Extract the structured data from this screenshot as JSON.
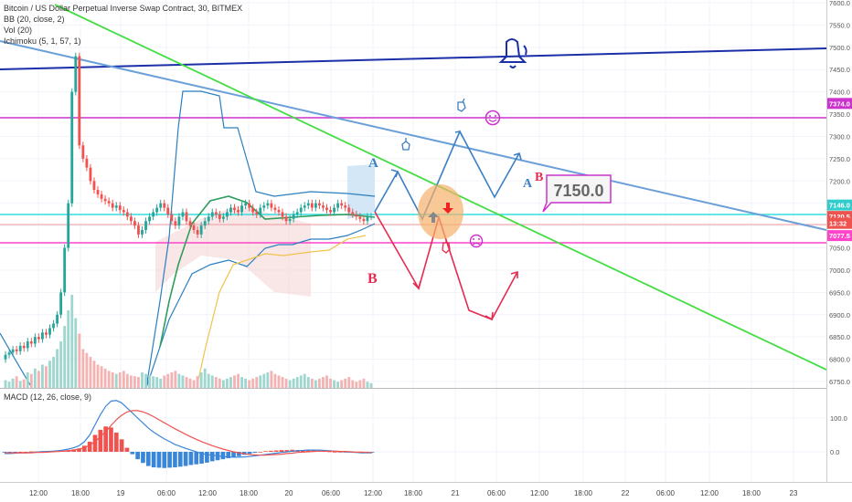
{
  "header": {
    "title": "Bitcoin / US Dollar Perpetual Inverse Swap Contract, 30, BITMEX",
    "indicators": [
      "BB (20, close, 2)",
      "Vol (20)",
      "Ichimoku (5, 1, 57, 1)"
    ]
  },
  "price_axis": {
    "ticks": [
      "7600.0",
      "7550.0",
      "7500.0",
      "7450.0",
      "7400.0",
      "7350.0",
      "7300.0",
      "7250.0",
      "7200.0",
      "7150.0",
      "7100.0",
      "7050.0",
      "7000.0",
      "6950.0",
      "6900.0",
      "6850.0",
      "6800.0",
      "6750.0"
    ],
    "tick_values": [
      7600,
      7550,
      7500,
      7450,
      7400,
      7350,
      7300,
      7250,
      7200,
      7150,
      7100,
      7050,
      7000,
      6950,
      6900,
      6850,
      6800,
      6750
    ],
    "badges": [
      {
        "text": "7374.0",
        "value": 7374,
        "color": "#cc33cc"
      },
      {
        "text": "7146.0",
        "value": 7146,
        "color": "#33cccc"
      },
      {
        "text": "7120.5",
        "value": 7120.5,
        "color": "#ef5350"
      },
      {
        "text": "13:32",
        "value": 7105,
        "color": "#ef5350"
      },
      {
        "text": "7077.5",
        "value": 7077.5,
        "color": "#ff44cc"
      }
    ]
  },
  "macd": {
    "title": "MACD (12, 26, close, 9)",
    "ticks": [
      "100.0",
      "0.0"
    ],
    "tick_values": [
      100,
      0
    ]
  },
  "time_axis": {
    "ticks": [
      "12:00",
      "18:00",
      "19",
      "06:00",
      "12:00",
      "18:00",
      "20",
      "06:00",
      "12:00",
      "18:00",
      "21",
      "06:00",
      "12:00",
      "18:00",
      "22",
      "06:00",
      "12:00",
      "18:00",
      "23"
    ]
  },
  "annotations": {
    "big_label": "7150.0",
    "letters": [
      "A",
      "A",
      "B",
      "B"
    ]
  },
  "chart_data": [
    {
      "type": "candlestick",
      "title": "Bitcoin / US Dollar Perpetual Inverse Swap Contract, 30, BITMEX",
      "ylim": [
        6740,
        7640
      ],
      "x": [
        1,
        2,
        3,
        4,
        5,
        6,
        7,
        8,
        9,
        10,
        11,
        12,
        13,
        14,
        15,
        16,
        17,
        18,
        19,
        20,
        21,
        22,
        23,
        24,
        25,
        26,
        27,
        28,
        29,
        30,
        31,
        32,
        33,
        34,
        35,
        36,
        37,
        38,
        39,
        40,
        41,
        42,
        43,
        44,
        45,
        46,
        47,
        48,
        49,
        50,
        51,
        52,
        53,
        54,
        55,
        56,
        57,
        58,
        59,
        60,
        61,
        62,
        63,
        64,
        65,
        66,
        67,
        68,
        69,
        70,
        71,
        72,
        73,
        74,
        75,
        76,
        77,
        78,
        79,
        80,
        81,
        82,
        83,
        84,
        85,
        86,
        87,
        88,
        89,
        90,
        91,
        92,
        93,
        94,
        95,
        96,
        97,
        98,
        99,
        100
      ],
      "open": [
        6800,
        6810,
        6815,
        6822,
        6818,
        6830,
        6825,
        6840,
        6835,
        6850,
        6845,
        6860,
        6855,
        6870,
        6880,
        6900,
        6950,
        7050,
        7150,
        7400,
        7480,
        7280,
        7250,
        7230,
        7200,
        7180,
        7170,
        7160,
        7155,
        7150,
        7140,
        7145,
        7135,
        7130,
        7120,
        7110,
        7100,
        7080,
        7090,
        7110,
        7120,
        7130,
        7140,
        7150,
        7140,
        7125,
        7110,
        7100,
        7120,
        7130,
        7110,
        7100,
        7090,
        7080,
        7100,
        7110,
        7120,
        7130,
        7125,
        7115,
        7120,
        7130,
        7140,
        7135,
        7130,
        7145,
        7150,
        7140,
        7130,
        7125,
        7140,
        7145,
        7150,
        7140,
        7135,
        7130,
        7120,
        7110,
        7115,
        7125,
        7130,
        7140,
        7145,
        7150,
        7140,
        7150,
        7145,
        7140,
        7135,
        7130,
        7140,
        7150,
        7145,
        7140,
        7130,
        7125,
        7120,
        7115,
        7110,
        7120
      ],
      "close": [
        6810,
        6815,
        6822,
        6818,
        6830,
        6825,
        6840,
        6835,
        6850,
        6845,
        6860,
        6855,
        6870,
        6880,
        6900,
        6950,
        7050,
        7150,
        7400,
        7480,
        7280,
        7250,
        7230,
        7200,
        7180,
        7170,
        7160,
        7155,
        7150,
        7140,
        7145,
        7135,
        7130,
        7120,
        7110,
        7100,
        7080,
        7090,
        7110,
        7120,
        7130,
        7140,
        7150,
        7140,
        7125,
        7110,
        7100,
        7120,
        7130,
        7110,
        7100,
        7090,
        7080,
        7100,
        7110,
        7120,
        7130,
        7125,
        7115,
        7120,
        7130,
        7140,
        7135,
        7130,
        7145,
        7150,
        7140,
        7130,
        7125,
        7140,
        7145,
        7150,
        7140,
        7135,
        7130,
        7120,
        7110,
        7115,
        7125,
        7130,
        7140,
        7145,
        7150,
        7140,
        7150,
        7145,
        7140,
        7135,
        7130,
        7140,
        7150,
        7145,
        7140,
        7130,
        7125,
        7120,
        7115,
        7110,
        7120,
        7120.5
      ],
      "volume": [
        10,
        8,
        12,
        15,
        9,
        11,
        20,
        18,
        25,
        22,
        30,
        28,
        35,
        40,
        50,
        60,
        80,
        100,
        120,
        90,
        70,
        50,
        45,
        40,
        35,
        30,
        28,
        25,
        22,
        20,
        18,
        20,
        22,
        18,
        16,
        15,
        14,
        20,
        18,
        16,
        15,
        14,
        12,
        16,
        18,
        20,
        22,
        18,
        16,
        14,
        12,
        10,
        15,
        20,
        25,
        18,
        16,
        14,
        12,
        10,
        12,
        14,
        16,
        18,
        14,
        12,
        10,
        12,
        14,
        16,
        18,
        20,
        22,
        18,
        16,
        14,
        12,
        10,
        12,
        14,
        16,
        18,
        14,
        12,
        10,
        12,
        14,
        16,
        12,
        10,
        8,
        10,
        12,
        14,
        10,
        8,
        10,
        12,
        8,
        6
      ]
    },
    {
      "type": "line",
      "title": "MACD (12, 26, close, 9)",
      "ylim": [
        -60,
        170
      ],
      "series": [
        {
          "name": "MACD",
          "values": [
            -5,
            -5,
            -4,
            -3,
            -3,
            -2,
            -1,
            0,
            1,
            2,
            3,
            5,
            8,
            12,
            18,
            30,
            50,
            80,
            110,
            135,
            150,
            152,
            145,
            130,
            115,
            100,
            85,
            70,
            58,
            48,
            38,
            30,
            22,
            16,
            10,
            5,
            0,
            -5,
            -8,
            -10,
            -12,
            -14,
            -15,
            -16,
            -16,
            -15,
            -14,
            -12,
            -10,
            -8,
            -6,
            -4,
            -2,
            0,
            2,
            3,
            4,
            5,
            5,
            5,
            4,
            3,
            2,
            1,
            0,
            -1,
            -2,
            -3,
            -3,
            -3
          ]
        },
        {
          "name": "Signal",
          "values": [
            -3,
            -3,
            -3,
            -3,
            -3,
            -3,
            -2,
            -2,
            -1,
            0,
            1,
            2,
            3,
            5,
            8,
            12,
            20,
            30,
            45,
            60,
            78,
            95,
            108,
            118,
            122,
            122,
            118,
            112,
            104,
            95,
            86,
            77,
            68,
            60,
            52,
            44,
            37,
            30,
            24,
            18,
            13,
            8,
            4,
            0,
            -3,
            -6,
            -8,
            -9,
            -10,
            -10,
            -9,
            -8,
            -7,
            -5,
            -4,
            -2,
            -1,
            0,
            1,
            2,
            2,
            2,
            2,
            1,
            1,
            0,
            -1,
            -1,
            -2,
            -2
          ]
        },
        {
          "name": "Histogram",
          "values": [
            -2,
            -2,
            -1,
            0,
            0,
            1,
            1,
            2,
            2,
            2,
            2,
            3,
            5,
            7,
            10,
            18,
            30,
            50,
            65,
            75,
            72,
            57,
            37,
            12,
            -7,
            -22,
            -33,
            -42,
            -46,
            -47,
            -48,
            -47,
            -46,
            -44,
            -42,
            -39,
            -37,
            -35,
            -32,
            -28,
            -25,
            -22,
            -19,
            -16,
            -13,
            -9,
            -6,
            -3,
            0,
            2,
            3,
            4,
            5,
            5,
            6,
            5,
            5,
            5,
            4,
            3,
            2,
            1,
            0,
            0,
            -1,
            -1,
            -1,
            -2,
            -1,
            -1
          ]
        }
      ]
    }
  ]
}
